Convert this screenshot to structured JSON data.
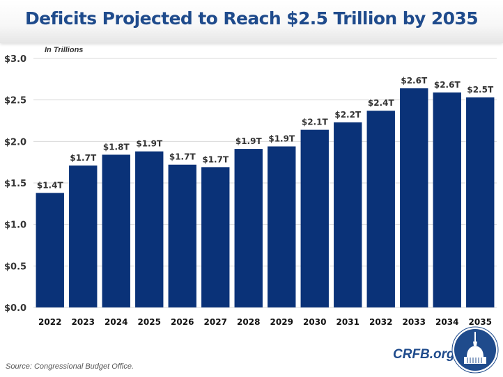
{
  "header": {
    "title": "Deficits Projected to Reach $2.5 Trillion by 2035"
  },
  "units_label": "In Trillions",
  "footer": {
    "source": "Source: Congressional Budget Office.",
    "brand": "CRFB.org",
    "logo_icon": "capitol-dome-icon"
  },
  "colors": {
    "bar": "#0a3278",
    "title": "#1f4b8c",
    "grid": "#d9d9d9"
  },
  "chart_data": {
    "type": "bar",
    "title": "Deficits Projected to Reach $2.5 Trillion by 2035",
    "subtitle": "In Trillions",
    "xlabel": "",
    "ylabel": "",
    "categories": [
      "2022",
      "2023",
      "2024",
      "2025",
      "2026",
      "2027",
      "2028",
      "2029",
      "2030",
      "2031",
      "2032",
      "2033",
      "2034",
      "2035"
    ],
    "values": [
      1.38,
      1.71,
      1.84,
      1.88,
      1.72,
      1.69,
      1.91,
      1.94,
      2.14,
      2.23,
      2.37,
      2.64,
      2.59,
      2.53
    ],
    "data_labels": [
      "$1.4T",
      "$1.7T",
      "$1.8T",
      "$1.9T",
      "$1.7T",
      "$1.7T",
      "$1.9T",
      "$1.9T",
      "$2.1T",
      "$2.2T",
      "$2.4T",
      "$2.6T",
      "$2.6T",
      "$2.5T"
    ],
    "yticks": [
      0,
      0.5,
      1.0,
      1.5,
      2.0,
      2.5,
      3.0
    ],
    "ytick_labels": [
      "$0.0",
      "$0.5",
      "$1.0",
      "$1.5",
      "$2.0",
      "$2.5",
      "$3.0"
    ],
    "ylim": [
      0,
      3.0
    ],
    "grid": true,
    "legend": "none"
  }
}
